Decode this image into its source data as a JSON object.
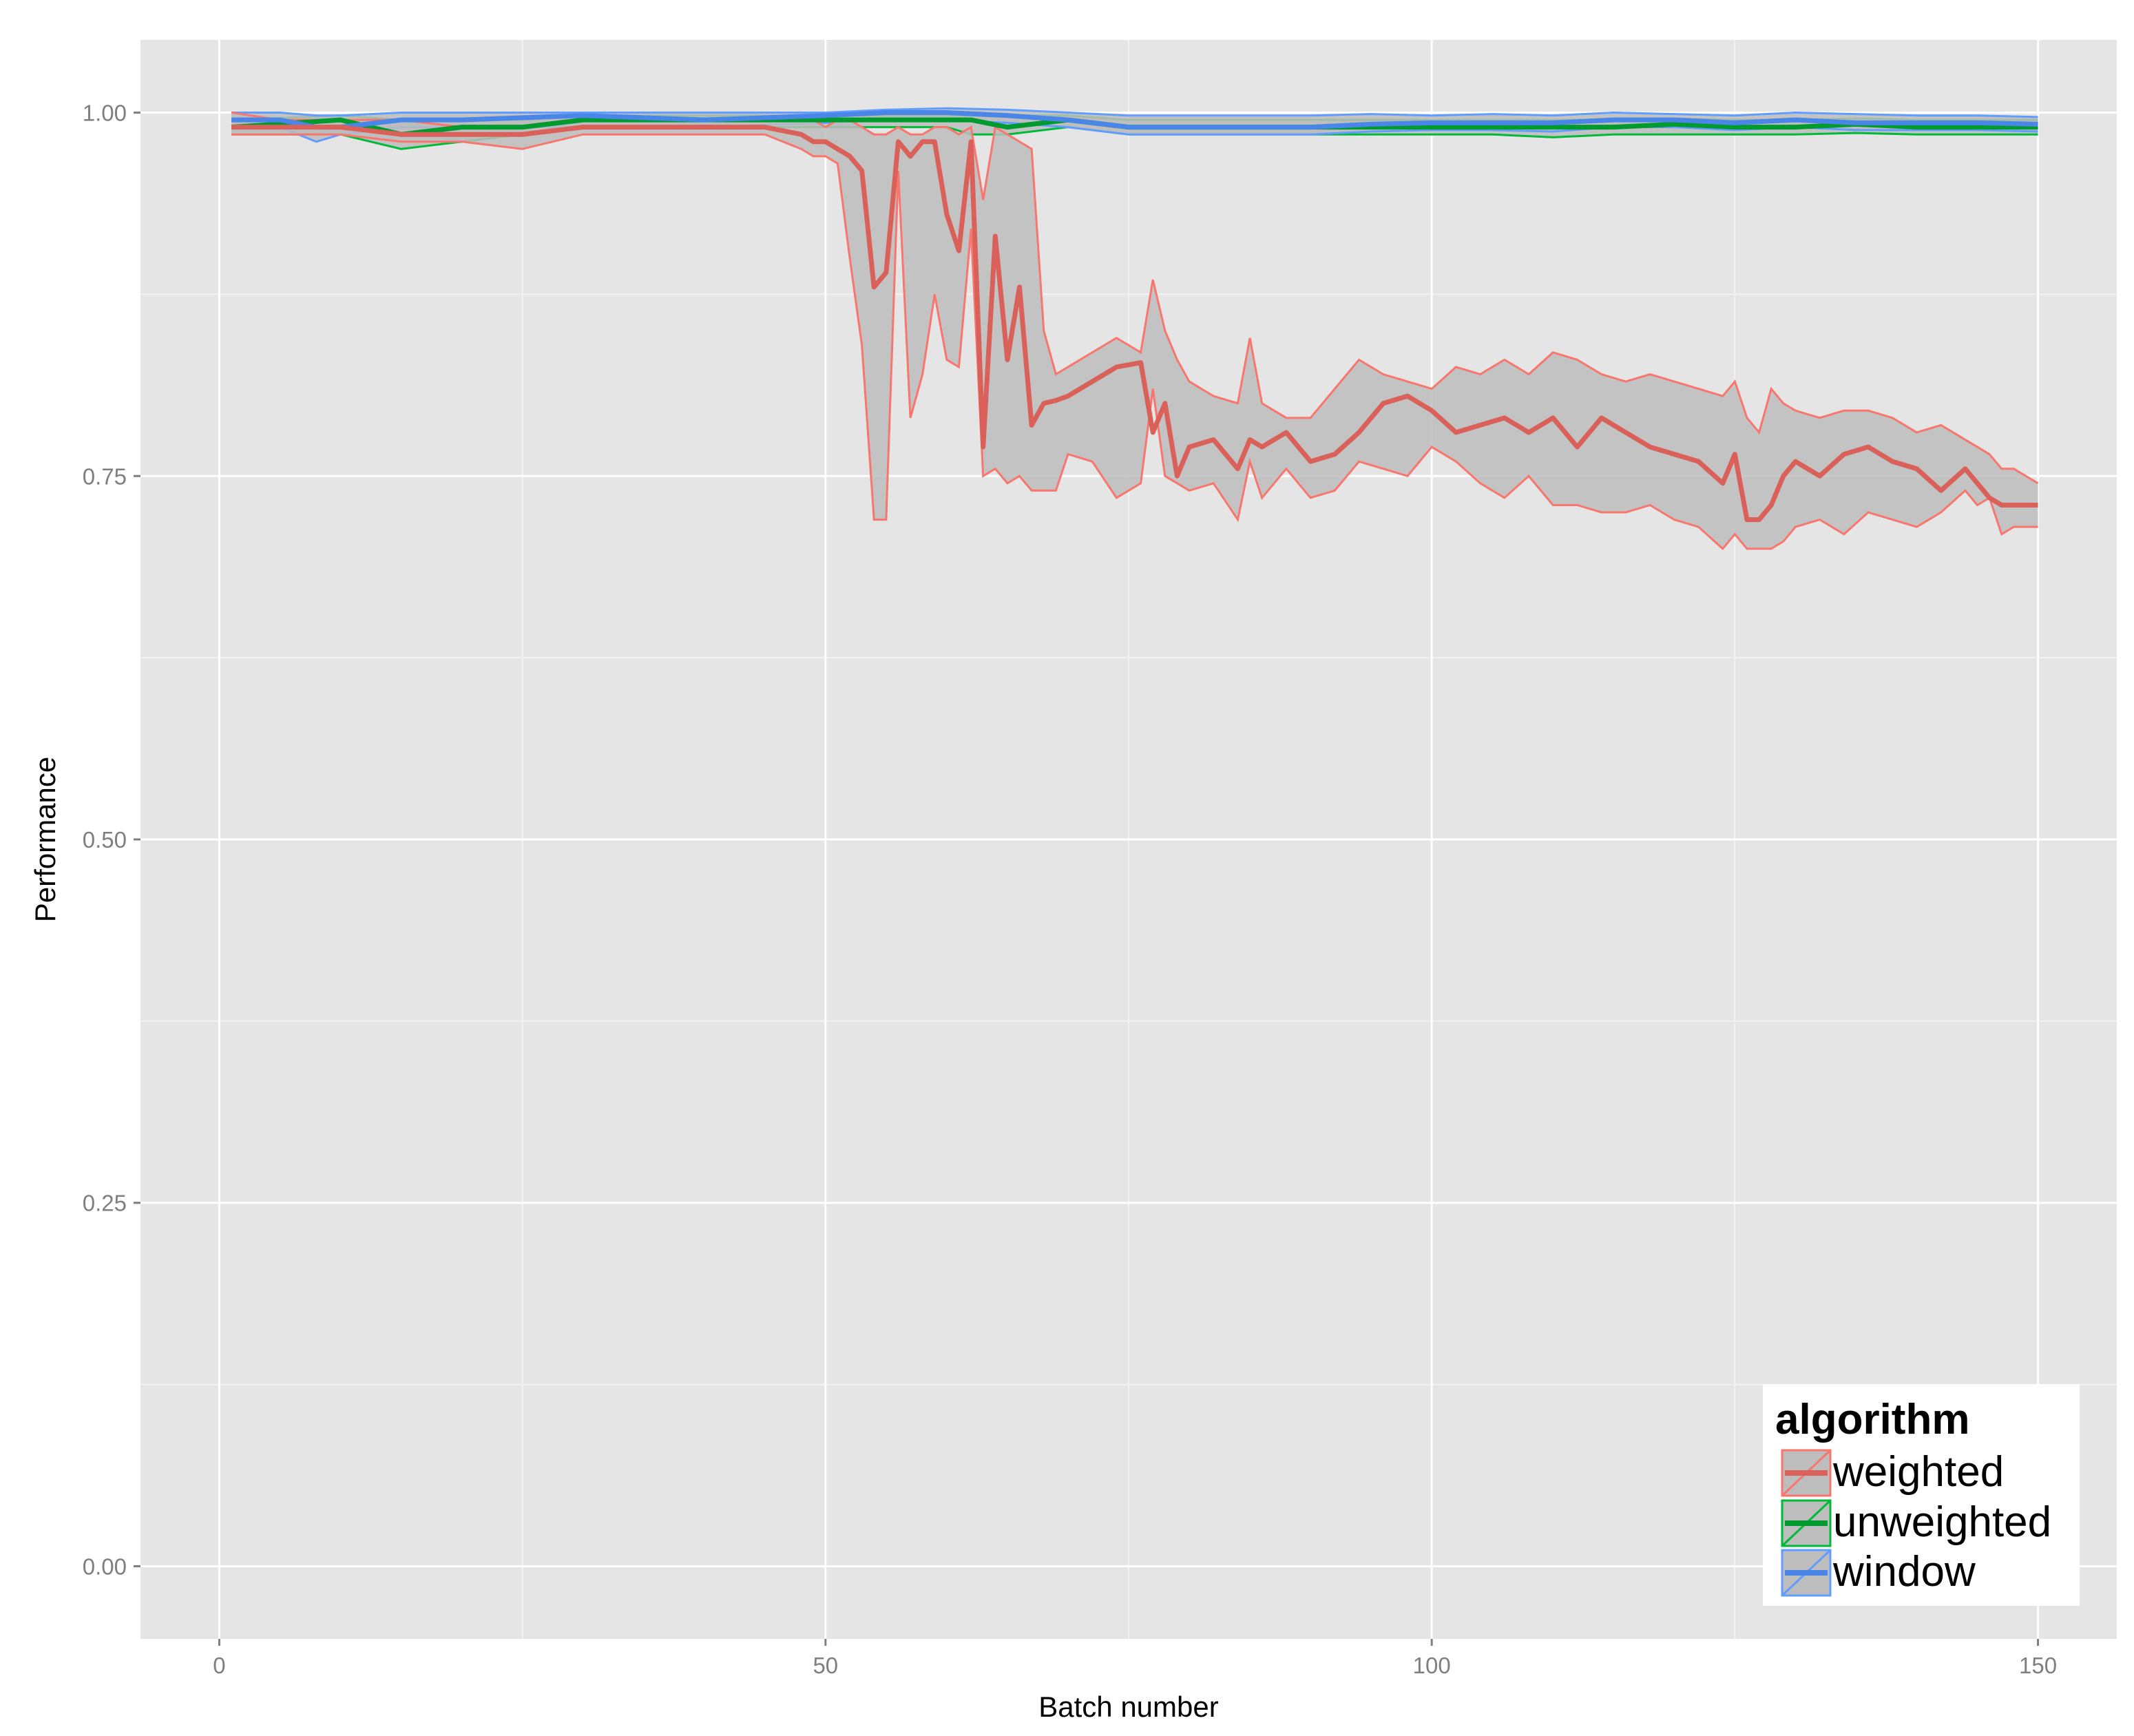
{
  "chart_data": {
    "type": "line",
    "xlabel": "Batch number",
    "ylabel": "Performance",
    "xlim": [
      -6.5,
      156.5
    ],
    "ylim": [
      -0.05,
      1.05
    ],
    "x_ticks": [
      0,
      50,
      100,
      150
    ],
    "x_tick_labels": [
      "0",
      "50",
      "100",
      "150"
    ],
    "y_ticks": [
      0,
      0.25,
      0.5,
      0.75,
      1.0
    ],
    "y_tick_labels": [
      "0.00",
      "0.25",
      "0.50",
      "0.75",
      "1.00"
    ],
    "grid": true,
    "panel_background": "#e5e5e5",
    "ribbon_fill": "#bdbdbd",
    "legend": {
      "title": "algorithm",
      "position": "bottom-right",
      "entries": [
        "weighted",
        "unweighted",
        "window"
      ]
    },
    "series": [
      {
        "name": "weighted",
        "color": "#f8766d",
        "mean_color": "#d9615a",
        "x": [
          1,
          5,
          10,
          15,
          20,
          25,
          30,
          35,
          40,
          45,
          48,
          49,
          50,
          51,
          52,
          53,
          54,
          55,
          56,
          57,
          58,
          59,
          60,
          61,
          62,
          63,
          64,
          65,
          66,
          67,
          68,
          69,
          70,
          72,
          74,
          76,
          77,
          78,
          79,
          80,
          82,
          84,
          85,
          86,
          88,
          90,
          92,
          94,
          96,
          98,
          100,
          102,
          104,
          106,
          108,
          110,
          112,
          114,
          116,
          118,
          120,
          122,
          124,
          125,
          126,
          127,
          128,
          129,
          130,
          132,
          134,
          136,
          138,
          140,
          142,
          144,
          145,
          146,
          147,
          148,
          149,
          150
        ],
        "mean": [
          0.99,
          0.99,
          0.99,
          0.985,
          0.985,
          0.985,
          0.99,
          0.99,
          0.99,
          0.99,
          0.985,
          0.98,
          0.98,
          0.975,
          0.97,
          0.96,
          0.88,
          0.89,
          0.98,
          0.97,
          0.98,
          0.98,
          0.93,
          0.905,
          0.98,
          0.77,
          0.915,
          0.83,
          0.88,
          0.785,
          0.8,
          0.802,
          0.805,
          0.815,
          0.825,
          0.828,
          0.78,
          0.8,
          0.75,
          0.77,
          0.775,
          0.755,
          0.775,
          0.77,
          0.78,
          0.76,
          0.765,
          0.78,
          0.8,
          0.805,
          0.795,
          0.78,
          0.785,
          0.79,
          0.78,
          0.79,
          0.77,
          0.79,
          0.78,
          0.77,
          0.765,
          0.76,
          0.745,
          0.765,
          0.72,
          0.72,
          0.73,
          0.75,
          0.76,
          0.75,
          0.765,
          0.77,
          0.76,
          0.755,
          0.74,
          0.755,
          0.745,
          0.735,
          0.73,
          0.73,
          0.73,
          0.73
        ],
        "upper": [
          1.0,
          0.995,
          0.995,
          0.995,
          0.99,
          0.99,
          0.995,
          0.995,
          0.995,
          0.995,
          0.995,
          0.995,
          0.99,
          0.995,
          0.995,
          0.99,
          0.985,
          0.985,
          0.99,
          0.985,
          0.985,
          0.99,
          0.99,
          0.985,
          0.99,
          0.94,
          0.99,
          0.985,
          0.98,
          0.975,
          0.85,
          0.82,
          0.825,
          0.835,
          0.845,
          0.835,
          0.885,
          0.85,
          0.83,
          0.815,
          0.805,
          0.8,
          0.845,
          0.8,
          0.79,
          0.79,
          0.81,
          0.83,
          0.82,
          0.815,
          0.81,
          0.825,
          0.82,
          0.83,
          0.82,
          0.835,
          0.83,
          0.82,
          0.815,
          0.82,
          0.815,
          0.81,
          0.805,
          0.815,
          0.79,
          0.78,
          0.81,
          0.8,
          0.795,
          0.79,
          0.795,
          0.795,
          0.79,
          0.78,
          0.785,
          0.775,
          0.77,
          0.765,
          0.755,
          0.755,
          0.75,
          0.745
        ],
        "lower": [
          0.985,
          0.985,
          0.985,
          0.98,
          0.98,
          0.975,
          0.985,
          0.985,
          0.985,
          0.985,
          0.975,
          0.97,
          0.97,
          0.965,
          0.9,
          0.84,
          0.72,
          0.72,
          0.96,
          0.79,
          0.82,
          0.875,
          0.83,
          0.825,
          0.92,
          0.75,
          0.755,
          0.745,
          0.75,
          0.74,
          0.74,
          0.74,
          0.765,
          0.76,
          0.735,
          0.745,
          0.81,
          0.75,
          0.745,
          0.74,
          0.745,
          0.72,
          0.76,
          0.735,
          0.755,
          0.735,
          0.74,
          0.76,
          0.755,
          0.75,
          0.77,
          0.76,
          0.745,
          0.735,
          0.75,
          0.73,
          0.73,
          0.725,
          0.725,
          0.73,
          0.72,
          0.715,
          0.7,
          0.71,
          0.7,
          0.7,
          0.7,
          0.705,
          0.715,
          0.72,
          0.71,
          0.725,
          0.72,
          0.715,
          0.725,
          0.74,
          0.73,
          0.735,
          0.71,
          0.715,
          0.715,
          0.715
        ]
      },
      {
        "name": "unweighted",
        "color": "#00ba38",
        "mean_color": "#009a2e",
        "x": [
          1,
          10,
          15,
          20,
          25,
          30,
          40,
          50,
          60,
          62,
          65,
          70,
          75,
          80,
          85,
          90,
          95,
          100,
          105,
          110,
          115,
          120,
          125,
          130,
          135,
          140,
          145,
          150
        ],
        "mean": [
          0.99,
          0.995,
          0.985,
          0.99,
          0.99,
          0.995,
          0.995,
          0.995,
          0.995,
          0.995,
          0.99,
          0.995,
          0.99,
          0.99,
          0.99,
          0.99,
          0.99,
          0.99,
          0.99,
          0.99,
          0.99,
          0.992,
          0.99,
          0.99,
          0.992,
          0.99,
          0.99,
          0.99
        ],
        "upper": [
          0.995,
          0.998,
          0.995,
          0.995,
          0.995,
          0.998,
          0.998,
          0.998,
          0.998,
          0.998,
          0.998,
          0.998,
          0.995,
          0.995,
          0.995,
          0.995,
          0.995,
          0.995,
          0.995,
          0.995,
          0.995,
          0.996,
          0.995,
          0.995,
          0.996,
          0.995,
          0.995,
          0.995
        ],
        "lower": [
          0.985,
          0.985,
          0.975,
          0.98,
          0.985,
          0.99,
          0.99,
          0.99,
          0.99,
          0.985,
          0.985,
          0.99,
          0.985,
          0.985,
          0.985,
          0.985,
          0.985,
          0.985,
          0.985,
          0.983,
          0.985,
          0.985,
          0.985,
          0.985,
          0.986,
          0.985,
          0.985,
          0.985
        ]
      },
      {
        "name": "window",
        "color": "#619cff",
        "mean_color": "#4a86e8",
        "x": [
          1,
          5,
          8,
          10,
          15,
          20,
          30,
          40,
          50,
          55,
          60,
          65,
          70,
          75,
          80,
          85,
          90,
          95,
          100,
          105,
          110,
          115,
          120,
          125,
          130,
          135,
          140,
          145,
          150
        ],
        "mean": [
          0.995,
          0.995,
          0.99,
          0.99,
          0.995,
          0.995,
          0.998,
          0.995,
          0.998,
          1.0,
          1.0,
          0.998,
          0.995,
          0.99,
          0.99,
          0.99,
          0.99,
          0.992,
          0.993,
          0.993,
          0.993,
          0.995,
          0.995,
          0.993,
          0.995,
          0.993,
          0.993,
          0.993,
          0.992
        ],
        "upper": [
          1.0,
          1.0,
          0.998,
          0.998,
          1.0,
          1.0,
          1.0,
          1.0,
          1.0,
          1.002,
          1.003,
          1.002,
          1.0,
          0.998,
          0.998,
          0.998,
          0.998,
          0.999,
          0.998,
          0.999,
          0.998,
          1.0,
          0.999,
          0.998,
          1.0,
          0.999,
          0.998,
          0.998,
          0.997
        ],
        "lower": [
          0.99,
          0.99,
          0.98,
          0.985,
          0.99,
          0.99,
          0.99,
          0.99,
          0.993,
          0.995,
          0.995,
          0.993,
          0.99,
          0.985,
          0.985,
          0.985,
          0.985,
          0.987,
          0.988,
          0.988,
          0.987,
          0.99,
          0.99,
          0.988,
          0.99,
          0.988,
          0.988,
          0.988,
          0.987
        ]
      }
    ]
  }
}
